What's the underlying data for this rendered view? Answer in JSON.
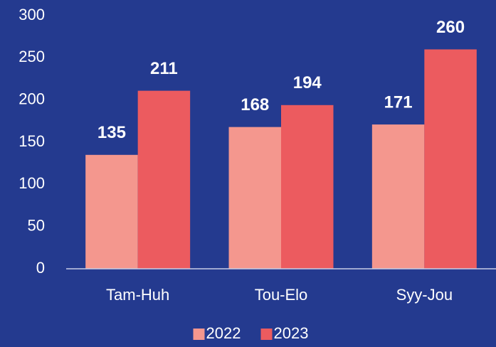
{
  "chart_data": {
    "type": "bar",
    "categories": [
      "Tam-Huh",
      "Tou-Elo",
      "Syy-Jou"
    ],
    "series": [
      {
        "name": "2022",
        "color": "#f4978e",
        "values": [
          135,
          168,
          171
        ]
      },
      {
        "name": "2023",
        "color": "#ec5b5f",
        "values": [
          211,
          194,
          260
        ]
      }
    ],
    "ylim": [
      0,
      300
    ],
    "yticks": [
      0,
      50,
      100,
      150,
      200,
      250,
      300
    ],
    "grid": false,
    "legend": "bottom"
  }
}
